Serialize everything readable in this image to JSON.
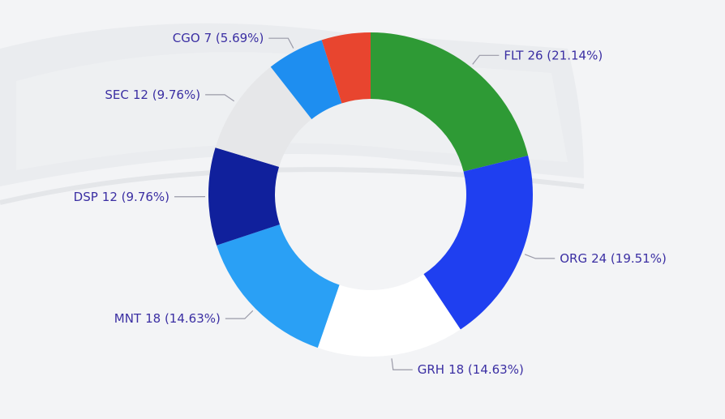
{
  "chart_data": {
    "type": "donut",
    "categories": [
      "FLT",
      "ORG",
      "GRH",
      "MNT",
      "DSP",
      "SEC",
      "CGO",
      null
    ],
    "values": [
      26,
      24,
      18,
      18,
      12,
      12,
      7,
      6
    ],
    "value_labels": [
      "26 (21.14%)",
      "24 (19.51%)",
      "18 (14.63%)",
      "18 (14.63%)",
      "12 (9.76%)",
      "12 (9.76%)",
      "7 (5.69%)",
      null
    ],
    "colors": [
      "#2e9a35",
      "#1f3ff0",
      "#ffffff",
      "#2aa0f5",
      "#10209c",
      "#e6e7e9",
      "#1e8ef0",
      "#e8452f"
    ]
  }
}
